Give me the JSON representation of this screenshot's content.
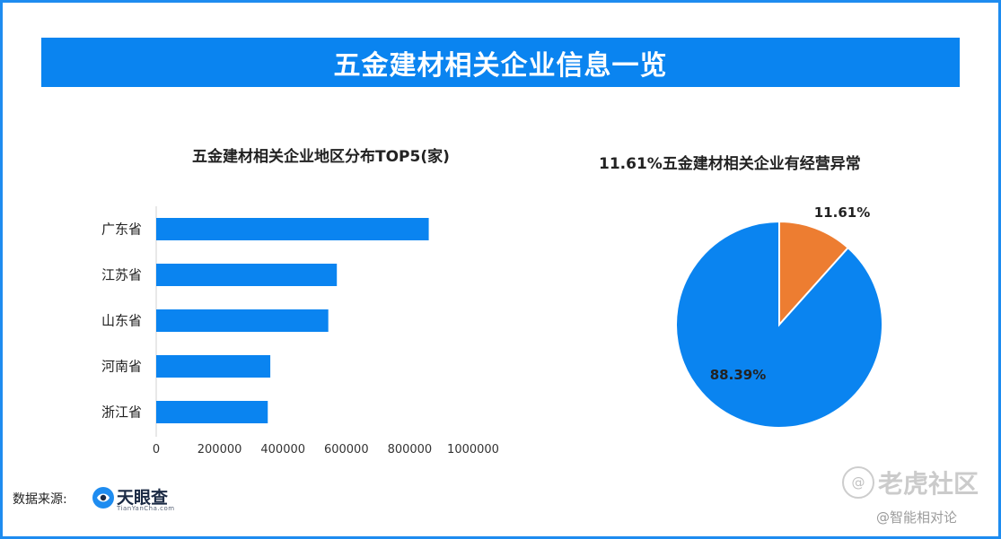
{
  "header": {
    "title": "五金建材相关企业信息一览"
  },
  "bar_chart_title": "五金建材相关企业地区分布TOP5(家)",
  "pie_chart_title": "11.61%五金建材相关企业有经营异常",
  "footer": {
    "source_label": "数据来源:",
    "logo_name": "天眼查",
    "logo_sub": "TianYanCha.com"
  },
  "watermark": {
    "icon": "@",
    "main": "老虎社区",
    "sub": "@智能相对论"
  },
  "colors": {
    "accent": "#0a84f0",
    "bar": "#0a84f0",
    "pie_normal": "#0a84f0",
    "pie_abnormal": "#ed7d31"
  },
  "chart_data": [
    {
      "type": "bar",
      "orientation": "horizontal",
      "title": "五金建材相关企业地区分布TOP5(家)",
      "categories": [
        "广东省",
        "江苏省",
        "山东省",
        "河南省",
        "浙江省"
      ],
      "values": [
        860000,
        570000,
        543000,
        360000,
        352000
      ],
      "xlim": [
        0,
        1000000
      ],
      "xticks": [
        "0",
        "200000",
        "400000",
        "600000",
        "800000",
        "1000000"
      ],
      "grid": false,
      "legend": "none"
    },
    {
      "type": "pie",
      "title": "11.61%五金建材相关企业有经营异常",
      "slices": [
        {
          "label": "11.61%",
          "value": 11.61
        },
        {
          "label": "88.39%",
          "value": 88.39
        }
      ],
      "legend": "none"
    }
  ]
}
